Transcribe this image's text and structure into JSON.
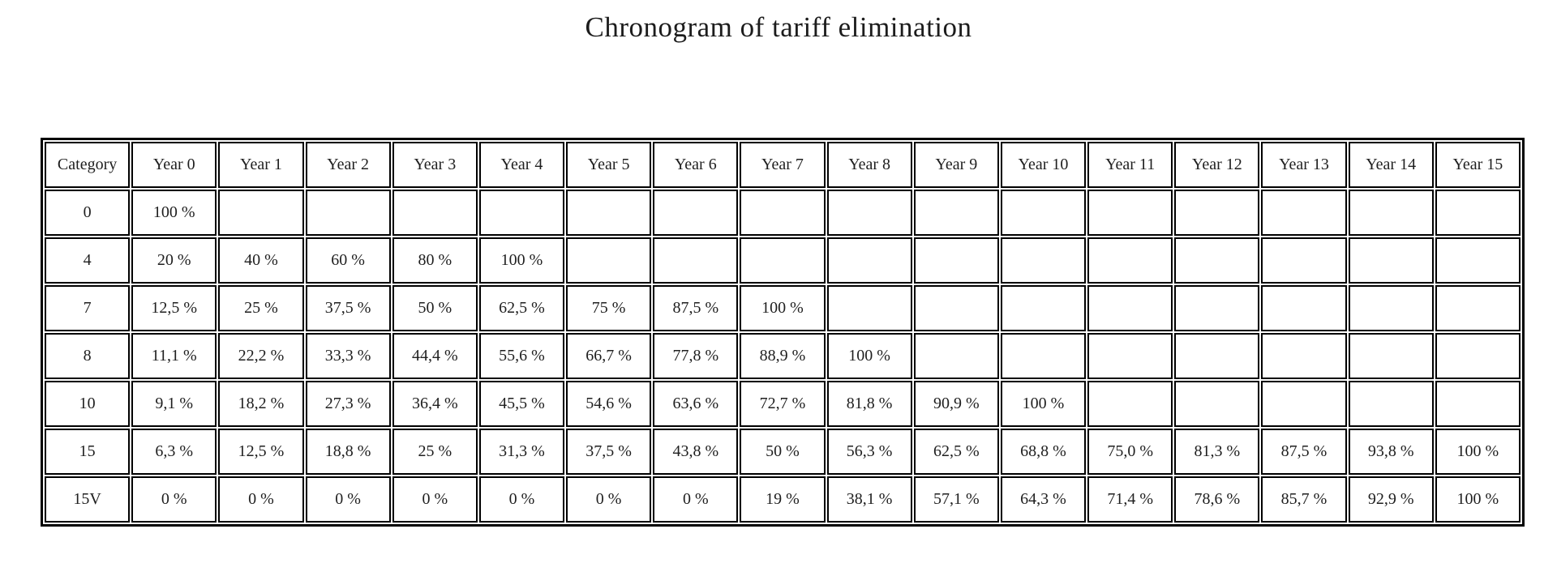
{
  "page": {
    "title": "Chronogram of tariff elimination",
    "background_color": "#ffffff",
    "text_color": "#1f1f1f",
    "border_color": "#000000"
  },
  "table": {
    "columns": [
      "Category",
      "Year 0",
      "Year 1",
      "Year 2",
      "Year 3",
      "Year 4",
      "Year 5",
      "Year 6",
      "Year 7",
      "Year 8",
      "Year 9",
      "Year 10",
      "Year 11",
      "Year 12",
      "Year 13",
      "Year 14",
      "Year 15"
    ],
    "rows": [
      {
        "category": "0",
        "values": [
          "100 %",
          "",
          "",
          "",
          "",
          "",
          "",
          "",
          "",
          "",
          "",
          "",
          "",
          "",
          "",
          ""
        ]
      },
      {
        "category": "4",
        "values": [
          "20 %",
          "40 %",
          "60 %",
          "80 %",
          "100 %",
          "",
          "",
          "",
          "",
          "",
          "",
          "",
          "",
          "",
          "",
          ""
        ]
      },
      {
        "category": "7",
        "values": [
          "12,5 %",
          "25 %",
          "37,5 %",
          "50 %",
          "62,5 %",
          "75 %",
          "87,5 %",
          "100 %",
          "",
          "",
          "",
          "",
          "",
          "",
          "",
          ""
        ]
      },
      {
        "category": "8",
        "values": [
          "11,1 %",
          "22,2 %",
          "33,3 %",
          "44,4 %",
          "55,6 %",
          "66,7 %",
          "77,8 %",
          "88,9 %",
          "100 %",
          "",
          "",
          "",
          "",
          "",
          "",
          ""
        ]
      },
      {
        "category": "10",
        "values": [
          "9,1 %",
          "18,2 %",
          "27,3 %",
          "36,4 %",
          "45,5 %",
          "54,6 %",
          "63,6 %",
          "72,7 %",
          "81,8 %",
          "90,9 %",
          "100 %",
          "",
          "",
          "",
          "",
          ""
        ]
      },
      {
        "category": "15",
        "values": [
          "6,3 %",
          "12,5 %",
          "18,8 %",
          "25 %",
          "31,3 %",
          "37,5 %",
          "43,8 %",
          "50 %",
          "56,3 %",
          "62,5 %",
          "68,8 %",
          "75,0 %",
          "81,3 %",
          "87,5 %",
          "93,8 %",
          "100 %"
        ]
      },
      {
        "category": "15V",
        "values": [
          "0 %",
          "0 %",
          "0 %",
          "0 %",
          "0 %",
          "0 %",
          "0 %",
          "19 %",
          "38,1 %",
          "57,1 %",
          "64,3 %",
          "71,4 %",
          "78,6 %",
          "85,7 %",
          "92,9 %",
          "100 %"
        ]
      }
    ]
  }
}
